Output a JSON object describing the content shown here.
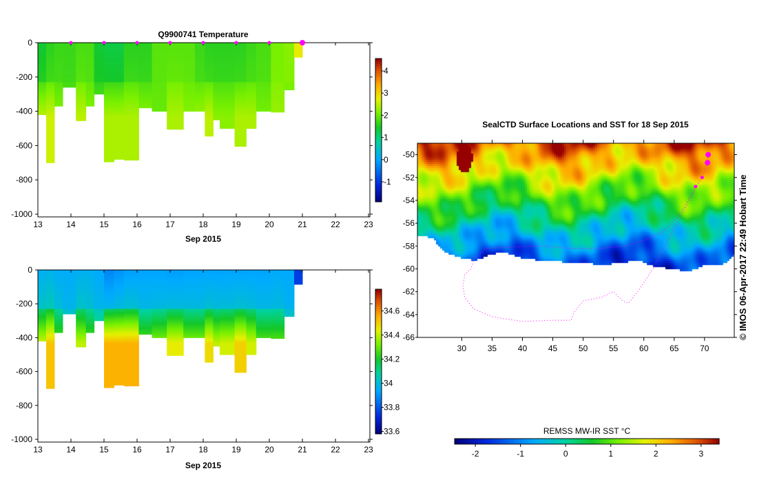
{
  "chart_data": [
    {
      "type": "heatmap",
      "title": "Q9900741  Temperature",
      "xlabel": "Sep 2015",
      "ylabel": "",
      "xlim": [
        13,
        23
      ],
      "ylim": [
        -1000,
        0
      ],
      "xticks": [
        "13",
        "14",
        "15",
        "16",
        "17",
        "18",
        "19",
        "20",
        "21",
        "22",
        "23"
      ],
      "yticks": [
        "0",
        "-200",
        "-400",
        "-600",
        "-800",
        "-1000"
      ],
      "colorbar": {
        "range": [
          -1.9,
          4.56
        ],
        "ticks": [
          "4",
          "3",
          "2",
          "1",
          "0",
          "-1"
        ]
      },
      "profile_days": [
        14,
        15,
        16,
        17,
        18,
        19,
        20,
        21
      ],
      "columns": [
        [
          13.0,
          13.25,
          420,
          1.4,
          2.5
        ],
        [
          13.25,
          13.5,
          700,
          1.6,
          2.6
        ],
        [
          13.5,
          13.75,
          370,
          1.7,
          2.2
        ],
        [
          13.75,
          14.15,
          260,
          1.7,
          1.9
        ],
        [
          14.15,
          14.45,
          455,
          1.8,
          2.5
        ],
        [
          14.45,
          14.7,
          370,
          1.8,
          2.2
        ],
        [
          14.7,
          15.0,
          300,
          1.4,
          2.0
        ],
        [
          15.0,
          15.3,
          695,
          1.3,
          2.4
        ],
        [
          15.3,
          15.6,
          680,
          1.3,
          2.4
        ],
        [
          15.6,
          16.05,
          685,
          1.6,
          2.4
        ],
        [
          16.05,
          16.45,
          380,
          1.6,
          2.2
        ],
        [
          16.45,
          16.9,
          400,
          1.9,
          2.0
        ],
        [
          16.9,
          17.4,
          505,
          1.9,
          2.4
        ],
        [
          17.4,
          17.75,
          400,
          1.9,
          2.2
        ],
        [
          17.75,
          18.05,
          400,
          1.7,
          2.3
        ],
        [
          18.05,
          18.3,
          545,
          1.6,
          2.5
        ],
        [
          18.3,
          18.5,
          450,
          1.6,
          2.2
        ],
        [
          18.5,
          18.95,
          500,
          1.6,
          2.2
        ],
        [
          18.95,
          19.3,
          605,
          1.6,
          2.4
        ],
        [
          19.3,
          19.6,
          500,
          1.7,
          2.4
        ],
        [
          19.6,
          20.05,
          400,
          1.8,
          2.1
        ],
        [
          20.05,
          20.45,
          405,
          2.1,
          2.3
        ],
        [
          20.45,
          20.75,
          275,
          2.2,
          2.0
        ],
        [
          20.75,
          21.0,
          85,
          2.8,
          2.8
        ]
      ]
    },
    {
      "type": "heatmap",
      "title": "",
      "xlabel": "Sep 2015",
      "ylabel": "",
      "xlim": [
        13,
        23
      ],
      "ylim": [
        -1000,
        0
      ],
      "xticks": [
        "13",
        "14",
        "15",
        "16",
        "17",
        "18",
        "19",
        "20",
        "21",
        "22",
        "23"
      ],
      "yticks": [
        "0",
        "-200",
        "-400",
        "-600",
        "-800",
        "-1000"
      ],
      "colorbar": {
        "range": [
          33.58,
          34.78
        ],
        "ticks": [
          "34.6",
          "34.4",
          "34.2",
          "34",
          "33.8",
          "33.6"
        ]
      },
      "columns": [
        [
          13.0,
          13.25,
          420,
          33.96,
          34.42
        ],
        [
          13.25,
          13.5,
          700,
          33.97,
          34.52
        ],
        [
          13.5,
          13.75,
          370,
          33.95,
          34.3
        ],
        [
          13.75,
          14.15,
          260,
          33.95,
          34.1
        ],
        [
          14.15,
          14.45,
          455,
          33.96,
          34.4
        ],
        [
          14.45,
          14.7,
          370,
          33.96,
          34.3
        ],
        [
          14.7,
          15.0,
          300,
          33.94,
          34.2
        ],
        [
          15.0,
          15.3,
          695,
          33.88,
          34.55
        ],
        [
          15.3,
          15.6,
          680,
          33.9,
          34.55
        ],
        [
          15.6,
          16.05,
          685,
          33.92,
          34.55
        ],
        [
          16.05,
          16.45,
          380,
          33.93,
          34.3
        ],
        [
          16.45,
          16.9,
          400,
          33.93,
          34.35
        ],
        [
          16.9,
          17.4,
          505,
          33.92,
          34.45
        ],
        [
          17.4,
          17.75,
          400,
          33.93,
          34.35
        ],
        [
          17.75,
          18.05,
          400,
          33.93,
          34.35
        ],
        [
          18.05,
          18.3,
          545,
          33.93,
          34.48
        ],
        [
          18.3,
          18.5,
          450,
          33.93,
          34.4
        ],
        [
          18.5,
          18.95,
          500,
          33.93,
          34.42
        ],
        [
          18.95,
          19.3,
          605,
          33.93,
          34.5
        ],
        [
          19.3,
          19.6,
          500,
          33.93,
          34.42
        ],
        [
          19.6,
          20.05,
          400,
          33.93,
          34.3
        ],
        [
          20.05,
          20.45,
          405,
          33.94,
          34.3
        ],
        [
          20.45,
          20.75,
          275,
          33.94,
          34.1
        ],
        [
          20.75,
          21.0,
          85,
          33.76,
          33.76
        ]
      ]
    },
    {
      "type": "heatmap",
      "title": "SealCTD Surface Locations and SST for 18 Sep 2015",
      "xlim": [
        22.7,
        74.9
      ],
      "ylim": [
        -66,
        -49
      ],
      "xticks": [
        "30",
        "35",
        "40",
        "45",
        "50",
        "55",
        "60",
        "65",
        "70"
      ],
      "yticks": [
        "-50",
        "-52",
        "-54",
        "-56",
        "-58",
        "-60",
        "-62",
        "-64",
        "-66"
      ],
      "colorbar": {
        "label": "REMSS MW-IR SST °C",
        "range": [
          -2.46,
          3.4
        ],
        "ticks": [
          "-2",
          "-1",
          "0",
          "1",
          "2",
          "3"
        ]
      },
      "ice_edge": [
        [
          22.7,
          -57.0
        ],
        [
          25,
          -57.2
        ],
        [
          27,
          -58.5
        ],
        [
          30,
          -59.0
        ],
        [
          32,
          -59.2
        ],
        [
          35,
          -58.6
        ],
        [
          37,
          -58.5
        ],
        [
          40,
          -59.0
        ],
        [
          43,
          -59.2
        ],
        [
          46,
          -59.3
        ],
        [
          50,
          -59.4
        ],
        [
          53,
          -59.6
        ],
        [
          56,
          -59.4
        ],
        [
          59,
          -59.2
        ],
        [
          62,
          -59.8
        ],
        [
          65,
          -59.9
        ],
        [
          67,
          -60.2
        ],
        [
          70,
          -59.6
        ],
        [
          73,
          -59.5
        ],
        [
          74.9,
          -58.7
        ]
      ],
      "track": [
        [
          70.6,
          -50.0
        ],
        [
          70.5,
          -50.8
        ],
        [
          69.6,
          -52.0
        ],
        [
          68.5,
          -52.8
        ],
        [
          67,
          -54.3
        ],
        [
          65.5,
          -55.5
        ],
        [
          63,
          -56.8
        ],
        [
          60,
          -57.5
        ],
        [
          57,
          -58.0
        ],
        [
          53,
          -58.2
        ],
        [
          48,
          -58.2
        ],
        [
          43,
          -58.0
        ],
        [
          38,
          -58.1
        ],
        [
          34,
          -58.2
        ],
        [
          32,
          -59.2
        ],
        [
          31.5,
          -60.0
        ],
        [
          30.5,
          -60.5
        ],
        [
          30.2,
          -61.5
        ],
        [
          30.5,
          -62.5
        ],
        [
          32,
          -63.5
        ],
        [
          35,
          -64.2
        ],
        [
          40,
          -64.6
        ],
        [
          45,
          -64.5
        ],
        [
          48,
          -64.5
        ],
        [
          48.5,
          -63.8
        ],
        [
          50,
          -62.8
        ],
        [
          53,
          -62.5
        ],
        [
          55,
          -62.0
        ],
        [
          56.5,
          -62.8
        ],
        [
          57.5,
          -63.0
        ],
        [
          59,
          -62.0
        ],
        [
          60.5,
          -60.8
        ],
        [
          61.5,
          -60.0
        ],
        [
          63,
          -58.5
        ],
        [
          66,
          -55.5
        ],
        [
          69,
          -52.5
        ]
      ],
      "credit": "© IMOS 06-Apr-2017 22:49 Hobart Time"
    }
  ],
  "colors": {
    "track": "#ff00ff"
  }
}
